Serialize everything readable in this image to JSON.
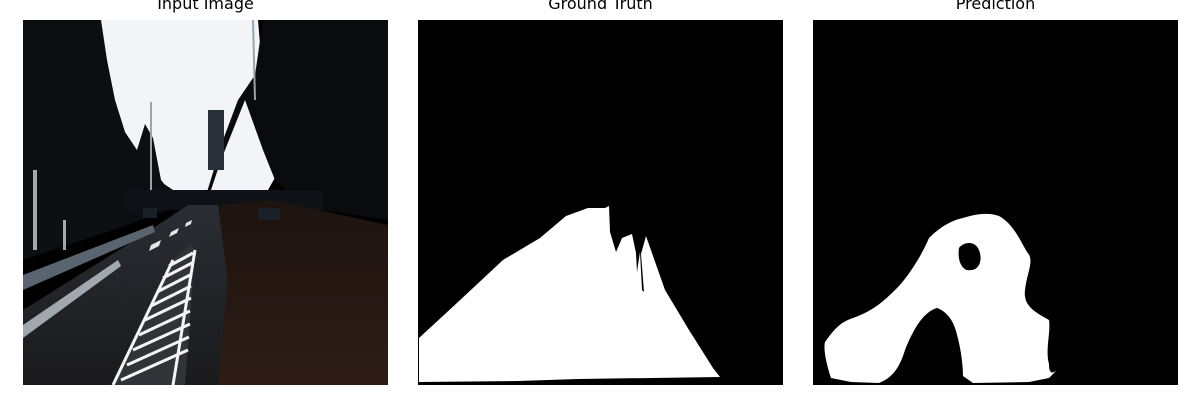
{
  "panels": [
    {
      "title": "Input Image"
    },
    {
      "title": "Ground Truth"
    },
    {
      "title": "Prediction"
    }
  ],
  "colors": {
    "background": "#ffffff",
    "mask_background": "#000000",
    "mask_foreground": "#ffffff",
    "sky": "#f2f4f7"
  }
}
